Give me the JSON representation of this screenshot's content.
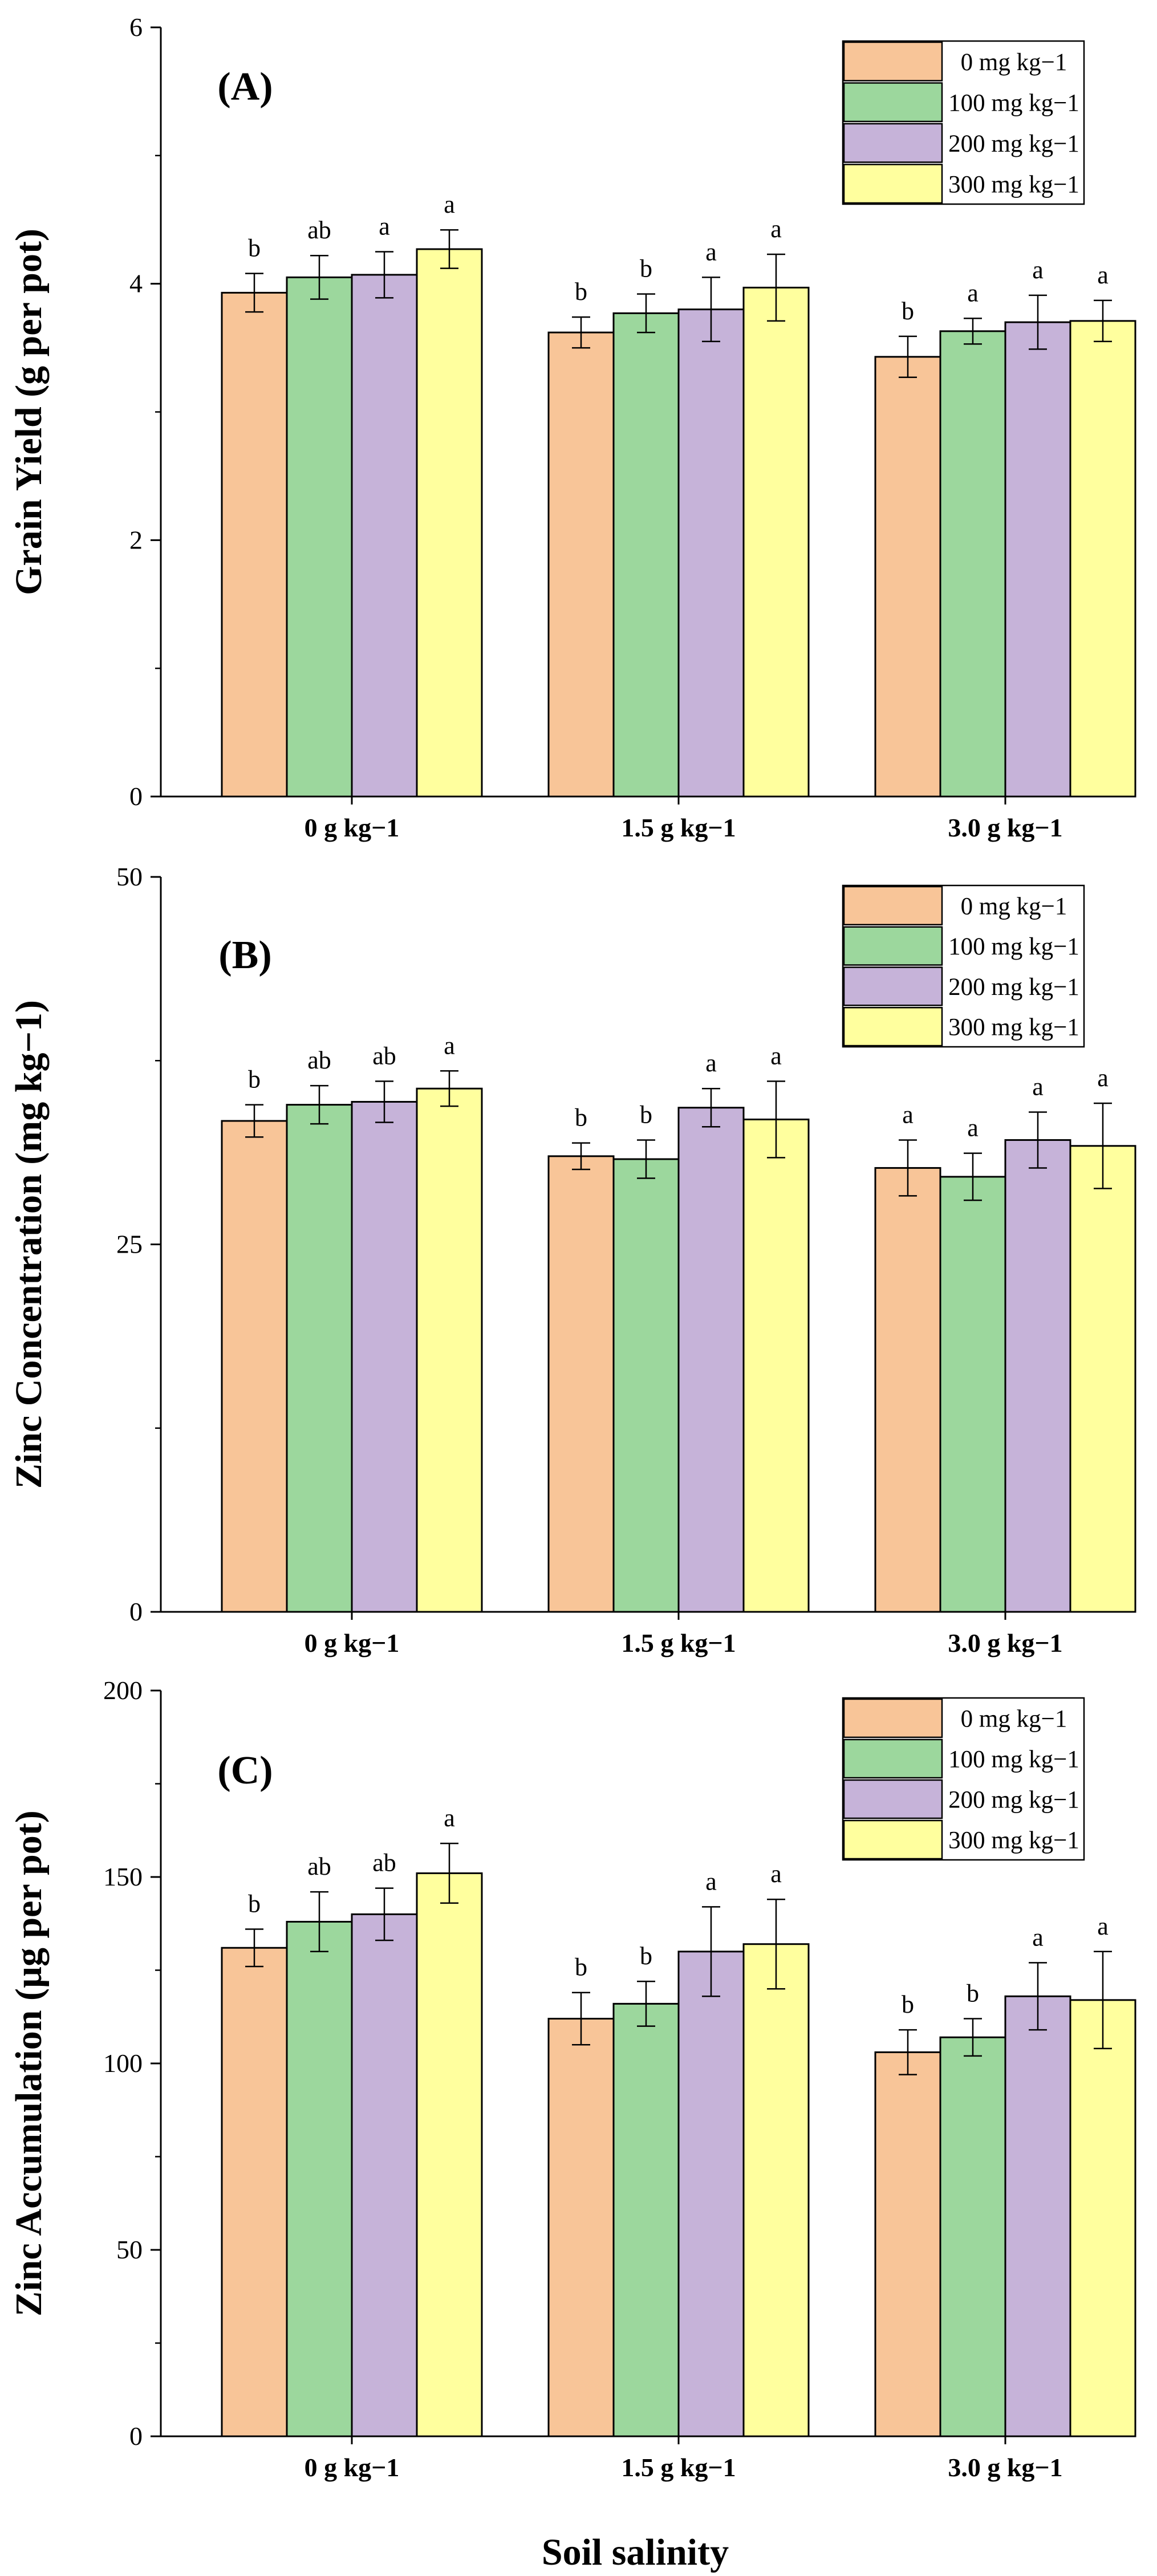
{
  "figure": {
    "x_axis_title": "Soil salinity"
  },
  "colors": {
    "series": [
      "#F8C598",
      "#9CD79D",
      "#C6B3D9",
      "#FFFF9E"
    ],
    "stroke": "#000000"
  },
  "chart_data": [
    {
      "type": "bar",
      "panel_label": "(A)",
      "ylabel": "Grain Yield (g per pot)",
      "xlabel": "Soil salinity",
      "categories": [
        "0 g kg−1",
        "1.5 g kg−1",
        "3.0 g kg−1"
      ],
      "ylim": [
        0,
        6
      ],
      "yticks": [
        0,
        2,
        4,
        6
      ],
      "ytick_labels": [
        "0",
        "2",
        "4",
        "6"
      ],
      "legend_position": "top-right",
      "series": [
        {
          "name": "0 mg kg−1",
          "values": [
            3.93,
            3.62,
            3.43
          ],
          "errors": [
            0.15,
            0.12,
            0.16
          ],
          "letters": [
            "b",
            "b",
            "b"
          ]
        },
        {
          "name": "100 mg kg−1",
          "values": [
            4.05,
            3.77,
            3.63
          ],
          "errors": [
            0.17,
            0.15,
            0.1
          ],
          "letters": [
            "ab",
            "b",
            "a"
          ]
        },
        {
          "name": "200 mg kg−1",
          "values": [
            4.07,
            3.8,
            3.7
          ],
          "errors": [
            0.18,
            0.25,
            0.21
          ],
          "letters": [
            "a",
            "a",
            "a"
          ]
        },
        {
          "name": "300 mg kg−1",
          "values": [
            4.27,
            3.97,
            3.71
          ],
          "errors": [
            0.15,
            0.26,
            0.16
          ],
          "letters": [
            "a",
            "a",
            "a"
          ]
        }
      ]
    },
    {
      "type": "bar",
      "panel_label": "(B)",
      "ylabel": "Zinc Concentration (mg kg−1)",
      "xlabel": "Soil salinity",
      "categories": [
        "0 g kg−1",
        "1.5 g kg−1",
        "3.0 g kg−1"
      ],
      "ylim": [
        0,
        50
      ],
      "yticks": [
        0,
        25,
        50
      ],
      "ytick_labels": [
        "0",
        "25",
        "50"
      ],
      "legend_position": "top-right",
      "series": [
        {
          "name": "0 mg kg−1",
          "values": [
            33.4,
            31.0,
            30.2
          ],
          "errors": [
            1.1,
            0.9,
            1.9
          ],
          "letters": [
            "b",
            "b",
            "a"
          ]
        },
        {
          "name": "100 mg kg−1",
          "values": [
            34.5,
            30.8,
            29.6
          ],
          "errors": [
            1.3,
            1.3,
            1.6
          ],
          "letters": [
            "ab",
            "b",
            "a"
          ]
        },
        {
          "name": "200 mg kg−1",
          "values": [
            34.7,
            34.3,
            32.1
          ],
          "errors": [
            1.4,
            1.3,
            1.9
          ],
          "letters": [
            "ab",
            "a",
            "a"
          ]
        },
        {
          "name": "300 mg kg−1",
          "values": [
            35.6,
            33.5,
            31.7
          ],
          "errors": [
            1.2,
            2.6,
            2.9
          ],
          "letters": [
            "a",
            "a",
            "a"
          ]
        }
      ]
    },
    {
      "type": "bar",
      "panel_label": "(C)",
      "ylabel": "Zinc Accumulation (µg per pot)",
      "xlabel": "Soil salinity",
      "categories": [
        "0 g kg−1",
        "1.5 g kg−1",
        "3.0 g kg−1"
      ],
      "ylim": [
        0,
        200
      ],
      "yticks": [
        0,
        50,
        100,
        150,
        200
      ],
      "ytick_labels": [
        "0",
        "50",
        "100",
        "150",
        "200"
      ],
      "legend_position": "top-right",
      "series": [
        {
          "name": "0 mg kg−1",
          "values": [
            131,
            112,
            103
          ],
          "errors": [
            5,
            7,
            6
          ],
          "letters": [
            "b",
            "b",
            "b"
          ]
        },
        {
          "name": "100 mg kg−1",
          "values": [
            138,
            116,
            107
          ],
          "errors": [
            8,
            6,
            5
          ],
          "letters": [
            "ab",
            "b",
            "b"
          ]
        },
        {
          "name": "200 mg kg−1",
          "values": [
            140,
            130,
            118
          ],
          "errors": [
            7,
            12,
            9
          ],
          "letters": [
            "ab",
            "a",
            "a"
          ]
        },
        {
          "name": "300 mg kg−1",
          "values": [
            151,
            132,
            117
          ],
          "errors": [
            8,
            12,
            13
          ],
          "letters": [
            "a",
            "a",
            "a"
          ]
        }
      ]
    }
  ]
}
